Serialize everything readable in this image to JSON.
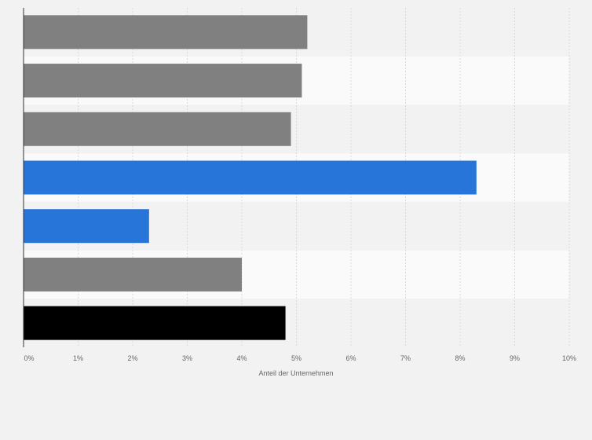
{
  "chart_data": {
    "type": "bar",
    "orientation": "horizontal",
    "categories": [
      "",
      "",
      "",
      "",
      "",
      "",
      ""
    ],
    "values": [
      5.2,
      5.1,
      4.9,
      8.3,
      2.3,
      4.0,
      4.8
    ],
    "bar_colors": [
      "#808080",
      "#808080",
      "#808080",
      "#2775d9",
      "#2775d9",
      "#808080",
      "#000000"
    ],
    "band_colors": [
      "#f2f2f2",
      "#fafafa"
    ],
    "gridline_color": "#d9d9d9",
    "axis_color": "#333333",
    "tick_color": "#666666",
    "xlim": [
      0,
      10
    ],
    "xticks": [
      0,
      1,
      2,
      3,
      4,
      5,
      6,
      7,
      8,
      9,
      10
    ],
    "xtick_labels": [
      "0%",
      "1%",
      "2%",
      "3%",
      "4%",
      "5%",
      "6%",
      "7%",
      "8%",
      "9%",
      "10%"
    ],
    "xlabel": "Anteil der Unternehmen",
    "ylabel": "",
    "title": "",
    "grid": true,
    "legend": "none"
  }
}
